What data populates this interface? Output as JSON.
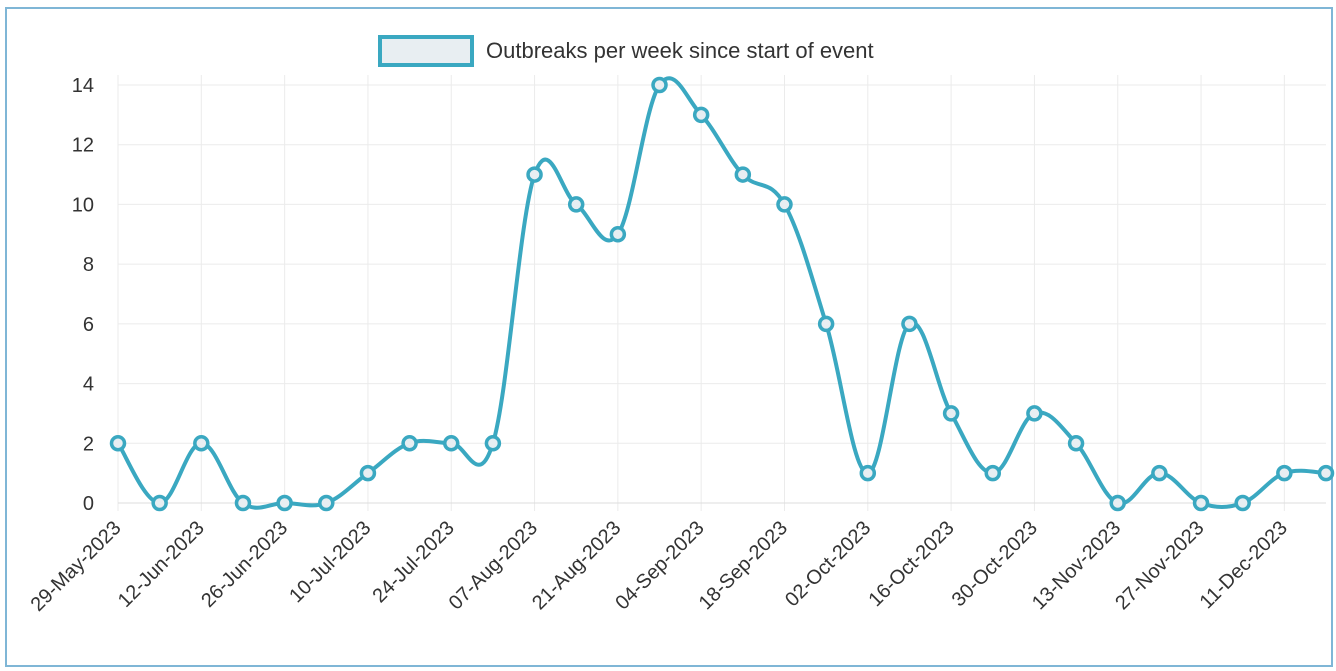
{
  "chart_data": {
    "type": "line",
    "title": "",
    "xlabel": "",
    "ylabel": "",
    "x": [
      "29-May-2023",
      "05-Jun-2023",
      "12-Jun-2023",
      "19-Jun-2023",
      "26-Jun-2023",
      "03-Jul-2023",
      "10-Jul-2023",
      "17-Jul-2023",
      "24-Jul-2023",
      "31-Jul-2023",
      "07-Aug-2023",
      "14-Aug-2023",
      "21-Aug-2023",
      "28-Aug-2023",
      "04-Sep-2023",
      "11-Sep-2023",
      "18-Sep-2023",
      "25-Sep-2023",
      "02-Oct-2023",
      "09-Oct-2023",
      "16-Oct-2023",
      "23-Oct-2023",
      "30-Oct-2023",
      "06-Nov-2023",
      "13-Nov-2023",
      "20-Nov-2023",
      "27-Nov-2023",
      "04-Dec-2023",
      "11-Dec-2023",
      "18-Dec-2023"
    ],
    "x_tick_labels": [
      "29-May-2023",
      "12-Jun-2023",
      "26-Jun-2023",
      "10-Jul-2023",
      "24-Jul-2023",
      "07-Aug-2023",
      "21-Aug-2023",
      "04-Sep-2023",
      "18-Sep-2023",
      "02-Oct-2023",
      "16-Oct-2023",
      "30-Oct-2023",
      "13-Nov-2023",
      "27-Nov-2023",
      "11-Dec-2023"
    ],
    "y_ticks": [
      "0",
      "2",
      "4",
      "6",
      "8",
      "10",
      "12",
      "14"
    ],
    "ylim": [
      0,
      14
    ],
    "grid": true,
    "legend_position": "top-center",
    "series": [
      {
        "name": "Outbreaks per week since start of event",
        "color": "#3aa8c1",
        "values": [
          2,
          0,
          2,
          0,
          0,
          0,
          1,
          2,
          2,
          2,
          11,
          10,
          9,
          14,
          13,
          11,
          10,
          6,
          1,
          6,
          3,
          1,
          3,
          2,
          0,
          1,
          0,
          0,
          1,
          1
        ]
      }
    ]
  }
}
